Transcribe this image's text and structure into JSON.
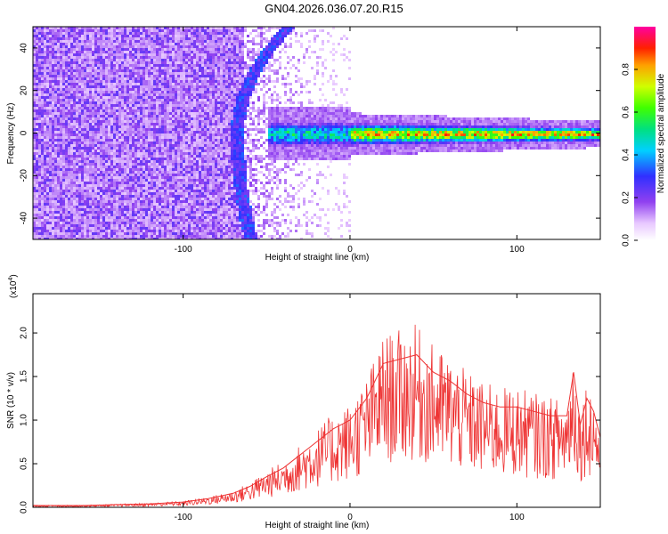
{
  "title": "GN04.2026.036.07.20.R15",
  "chart_data": [
    {
      "type": "heatmap",
      "xlabel": "Height of straight line (km)",
      "ylabel": "Frequency (Hz)",
      "xlim": [
        -190,
        150
      ],
      "ylim": [
        -50,
        50
      ],
      "xticks": [
        -100,
        0,
        100
      ],
      "yticks": [
        -40,
        -20,
        0,
        20,
        40
      ],
      "colorbar": {
        "label": "Normalized spectral amplitude",
        "ticks": [
          "0.0",
          "0.2",
          "0.4",
          "0.6",
          "0.8"
        ],
        "range": [
          0,
          1
        ]
      }
    },
    {
      "type": "line",
      "xlabel": "Height of straight line (km)",
      "ylabel": "SNR (10 * v/v)",
      "multiplier": "(x10",
      "multiplier_exp": "4",
      "multiplier_close": ")",
      "xlim": [
        -190,
        150
      ],
      "ylim": [
        0,
        2.45
      ],
      "xticks": [
        -100,
        0,
        100
      ],
      "yticks": [
        "0.0",
        "0.5",
        "1.0",
        "1.5",
        "2.0"
      ],
      "series": [
        {
          "name": "SNR",
          "color": "#ee3333",
          "x": [
            -190,
            -160,
            -120,
            -100,
            -85,
            -70,
            -60,
            -50,
            -40,
            -30,
            -20,
            -10,
            0,
            10,
            20,
            30,
            40,
            50,
            60,
            70,
            80,
            90,
            100,
            110,
            120,
            130,
            134,
            138,
            142,
            146,
            150
          ],
          "y": [
            0.02,
            0.02,
            0.04,
            0.06,
            0.1,
            0.16,
            0.24,
            0.35,
            0.45,
            0.6,
            0.75,
            0.9,
            1.0,
            1.25,
            1.65,
            1.7,
            1.75,
            1.55,
            1.45,
            1.3,
            1.2,
            1.15,
            1.15,
            1.1,
            1.05,
            1.05,
            1.55,
            0.95,
            1.25,
            1.1,
            0.8
          ]
        }
      ]
    }
  ]
}
